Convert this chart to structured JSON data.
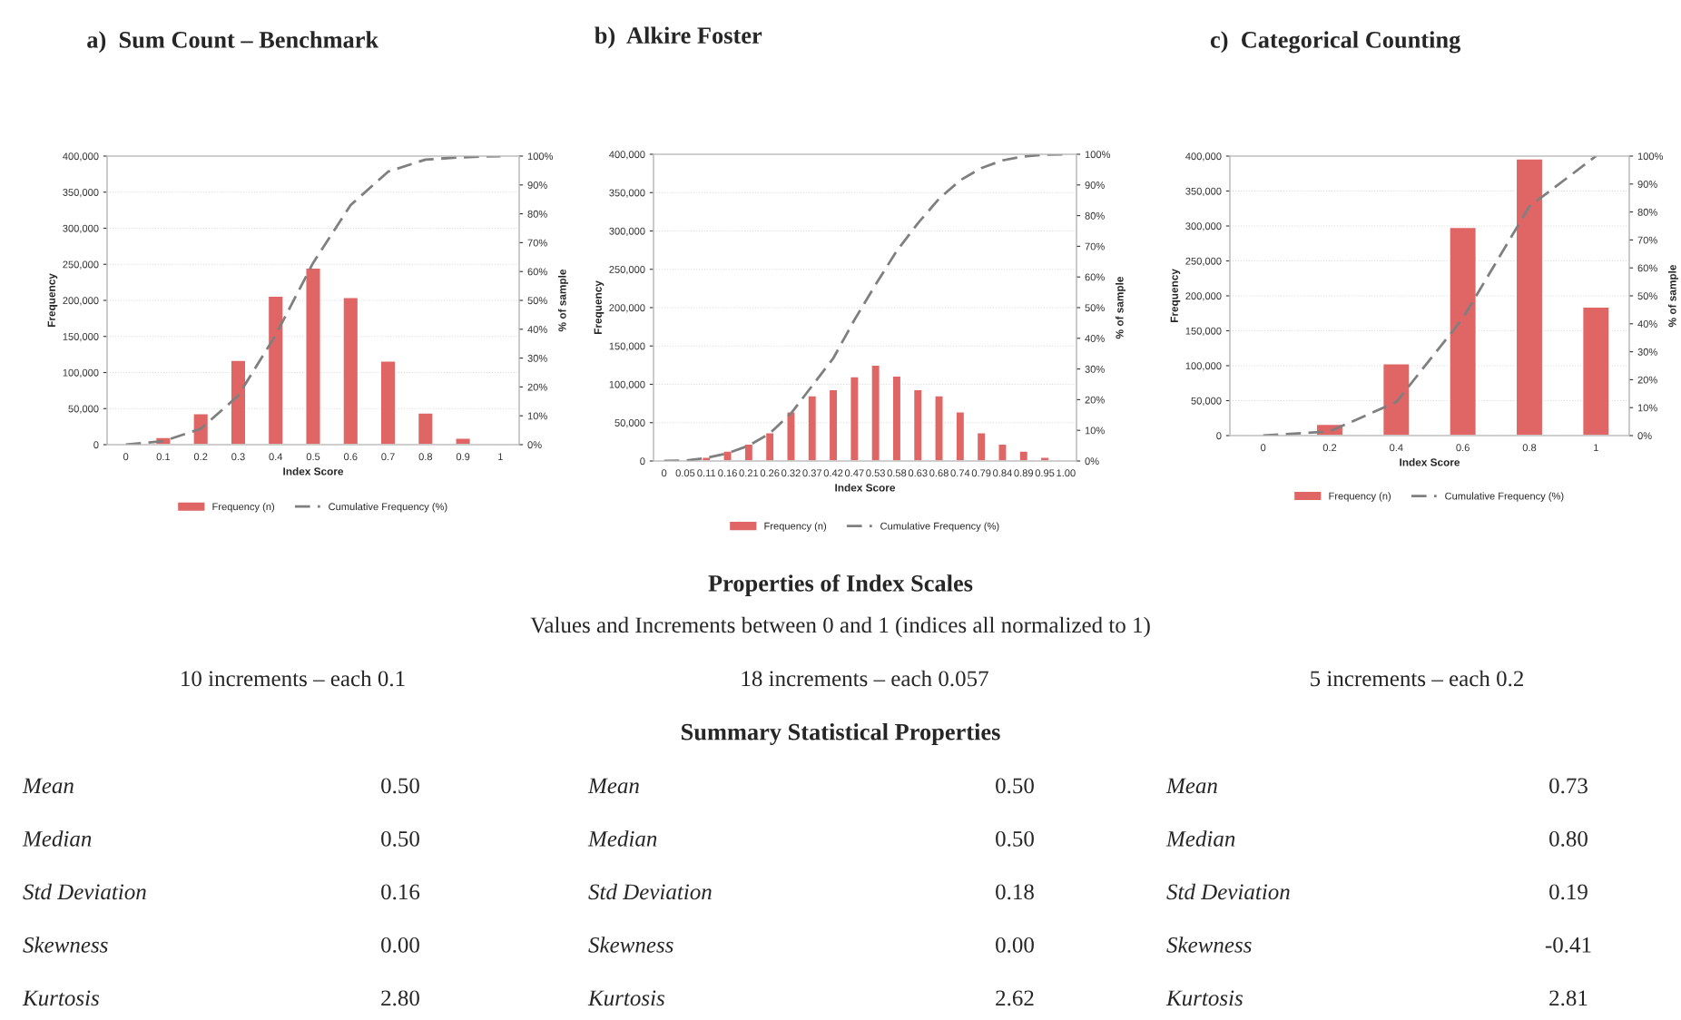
{
  "chart_data": [
    {
      "type": "bar",
      "title": "a)  Sum Count – Benchmark",
      "xlabel": "Index Score",
      "ylabel": "Frequency",
      "y2label": "% of sample",
      "categories": [
        "0",
        "0.1",
        "0.2",
        "0.3",
        "0.4",
        "0.5",
        "0.6",
        "0.7",
        "0.8",
        "0.9",
        "1"
      ],
      "series": [
        {
          "name": "Frequency (n)",
          "type": "bar",
          "color": "#e06666",
          "values": [
            1000,
            10000,
            43000,
            117000,
            206000,
            245000,
            204000,
            116000,
            44000,
            9000,
            1000
          ]
        },
        {
          "name": "Cumulative Frequency (%)",
          "type": "line",
          "axis": "y2",
          "color": "#7f7f7f",
          "line_style": "dashed",
          "values": [
            0,
            1.2,
            5.5,
            17,
            38,
            63,
            83,
            94.6,
            98.8,
            99.6,
            100
          ]
        }
      ],
      "ylim": [
        0,
        400000
      ],
      "yticks": [
        {
          "value": 0,
          "label": "0"
        },
        {
          "value": 50000,
          "label": "50,000"
        },
        {
          "value": 100000,
          "label": "100,000"
        },
        {
          "value": 150000,
          "label": "150,000"
        },
        {
          "value": 200000,
          "label": "200,000"
        },
        {
          "value": 250000,
          "label": "250,000"
        },
        {
          "value": 300000,
          "label": "300,000"
        },
        {
          "value": 350000,
          "label": "350,000"
        },
        {
          "value": 400000,
          "label": "400,000"
        }
      ],
      "y2lim": [
        0,
        100
      ],
      "y2ticks": [
        {
          "value": 0,
          "label": "0%"
        },
        {
          "value": 10,
          "label": "10%"
        },
        {
          "value": 20,
          "label": "20%"
        },
        {
          "value": 30,
          "label": "30%"
        },
        {
          "value": 40,
          "label": "40%"
        },
        {
          "value": 50,
          "label": "50%"
        },
        {
          "value": 60,
          "label": "60%"
        },
        {
          "value": 70,
          "label": "70%"
        },
        {
          "value": 80,
          "label": "80%"
        },
        {
          "value": 90,
          "label": "90%"
        },
        {
          "value": 100,
          "label": "100%"
        }
      ],
      "grid": "y",
      "legend": "bottom"
    },
    {
      "type": "bar",
      "title": "b)  Alkire Foster",
      "xlabel": "Index Score",
      "ylabel": "Frequency",
      "y2label": "% of sample",
      "categories": [
        "0",
        "0.05",
        "0.11",
        "0.16",
        "0.21",
        "0.26",
        "0.32",
        "0.37",
        "0.42",
        "0.47",
        "0.53",
        "0.58",
        "0.63",
        "0.68",
        "0.74",
        "0.79",
        "0.84",
        "0.89",
        "0.95",
        "1.00"
      ],
      "series": [
        {
          "name": "Frequency (n)",
          "type": "bar",
          "color": "#e06666",
          "values": [
            1000,
            null,
            5000,
            13000,
            22000,
            37000,
            64000,
            85000,
            93000,
            110000,
            125000,
            111000,
            93000,
            85000,
            64000,
            37000,
            22000,
            13000,
            5000,
            1000
          ]
        },
        {
          "name": "Cumulative Frequency (%)",
          "type": "line",
          "axis": "y2",
          "color": "#7f7f7f",
          "line_style": "dashed",
          "values": [
            0,
            0.1,
            1,
            2.5,
            5,
            9,
            15.5,
            24.5,
            33.5,
            46,
            57.5,
            68.5,
            77.5,
            85.5,
            91.5,
            95.5,
            98,
            99.3,
            99.9,
            100
          ]
        }
      ],
      "ylim": [
        0,
        400000
      ],
      "yticks": [
        {
          "value": 0,
          "label": "0"
        },
        {
          "value": 50000,
          "label": "50,000"
        },
        {
          "value": 100000,
          "label": "100,000"
        },
        {
          "value": 150000,
          "label": "150,000"
        },
        {
          "value": 200000,
          "label": "200,000"
        },
        {
          "value": 250000,
          "label": "250,000"
        },
        {
          "value": 300000,
          "label": "300,000"
        },
        {
          "value": 350000,
          "label": "350,000"
        },
        {
          "value": 400000,
          "label": "400,000"
        }
      ],
      "y2lim": [
        0,
        100
      ],
      "y2ticks": [
        {
          "value": 0,
          "label": "0%"
        },
        {
          "value": 10,
          "label": "10%"
        },
        {
          "value": 20,
          "label": "20%"
        },
        {
          "value": 30,
          "label": "30%"
        },
        {
          "value": 40,
          "label": "40%"
        },
        {
          "value": 50,
          "label": "50%"
        },
        {
          "value": 60,
          "label": "60%"
        },
        {
          "value": 70,
          "label": "70%"
        },
        {
          "value": 80,
          "label": "80%"
        },
        {
          "value": 90,
          "label": "90%"
        },
        {
          "value": 100,
          "label": "100%"
        }
      ],
      "grid": "y",
      "legend": "bottom"
    },
    {
      "type": "bar",
      "title": "c)  Categorical Counting",
      "xlabel": "Index Score",
      "ylabel": "Frequency",
      "y2label": "% of sample",
      "categories": [
        "0",
        "0.2",
        "0.4",
        "0.6",
        "0.8",
        "1"
      ],
      "series": [
        {
          "name": "Frequency (n)",
          "type": "bar",
          "color": "#e06666",
          "values": [
            1000,
            16000,
            103000,
            298000,
            396000,
            184000
          ]
        },
        {
          "name": "Cumulative Frequency (%)",
          "type": "line",
          "axis": "y2",
          "color": "#7f7f7f",
          "line_style": "dashed",
          "values": [
            0,
            1.5,
            12,
            42,
            82,
            100
          ]
        }
      ],
      "ylim": [
        0,
        400000
      ],
      "yticks": [
        {
          "value": 0,
          "label": "0"
        },
        {
          "value": 50000,
          "label": "50,000"
        },
        {
          "value": 100000,
          "label": "100,000"
        },
        {
          "value": 150000,
          "label": "150,000"
        },
        {
          "value": 200000,
          "label": "200,000"
        },
        {
          "value": 250000,
          "label": "250,000"
        },
        {
          "value": 300000,
          "label": "300,000"
        },
        {
          "value": 350000,
          "label": "350,000"
        },
        {
          "value": 400000,
          "label": "400,000"
        }
      ],
      "y2lim": [
        0,
        100
      ],
      "y2ticks": [
        {
          "value": 0,
          "label": "0%"
        },
        {
          "value": 10,
          "label": "10%"
        },
        {
          "value": 20,
          "label": "20%"
        },
        {
          "value": 30,
          "label": "30%"
        },
        {
          "value": 40,
          "label": "40%"
        },
        {
          "value": 50,
          "label": "50%"
        },
        {
          "value": 60,
          "label": "60%"
        },
        {
          "value": 70,
          "label": "70%"
        },
        {
          "value": 80,
          "label": "80%"
        },
        {
          "value": 90,
          "label": "90%"
        },
        {
          "value": 100,
          "label": "100%"
        }
      ],
      "grid": "y",
      "legend": "bottom"
    },
    {
      "type": "other",
      "title": "Properties of Index Scales",
      "subtitle": "Values and Increments between 0 and 1 (indices all normalized to 1)",
      "annotations": [
        "10 increments – each 0.1",
        "18 increments – each 0.057",
        "5 increments – each 0.2",
        "Summary Statistical Properties",
        "Mean",
        "0.50",
        "Mean",
        "0.50",
        "Mean",
        "0.73",
        "Median",
        "0.50",
        "Median",
        "0.50",
        "Median",
        "0.80",
        "Std Deviation",
        "0.16",
        "Std Deviation",
        "0.18",
        "Std Deviation",
        "0.19",
        "Skewness",
        "0.00",
        "Skewness",
        "0.00",
        "Skewness",
        "-0.41",
        "Kurtosis",
        "2.80",
        "Kurtosis",
        "2.62",
        "Kurtosis",
        "2.81"
      ]
    }
  ]
}
